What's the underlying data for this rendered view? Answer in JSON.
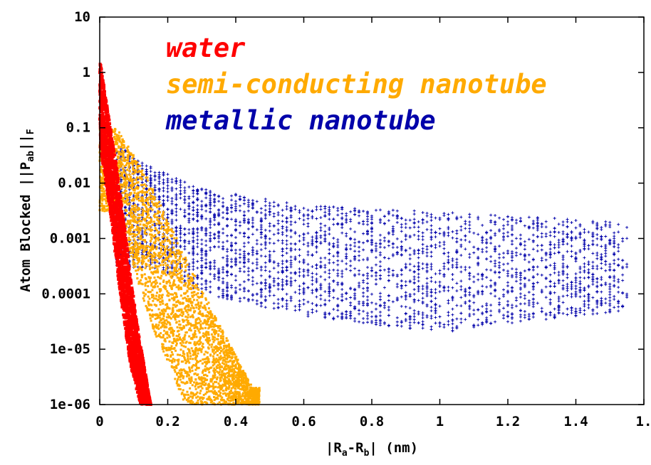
{
  "chart_data": {
    "type": "scatter",
    "title": "",
    "xlabel": "|Ra-Rb| (nm)",
    "ylabel": "Atom Blocked ||Pab||F",
    "xlim": [
      0,
      1.6
    ],
    "ylim": [
      1e-06,
      10
    ],
    "yscale": "log",
    "grid": false,
    "legend_position": "top-left (inside plot)",
    "x_ticks": [
      "0",
      "0.2",
      "0.4",
      "0.6",
      "0.8",
      "1",
      "1.2",
      "1.4",
      "1."
    ],
    "y_ticks": [
      "10",
      "1",
      "0.1",
      "0.01",
      "0.001",
      "0.0001",
      "1e-05",
      "1e-06"
    ],
    "series": [
      {
        "name": "water",
        "color": "#ff0000",
        "marker": "dense squares",
        "x_range": [
          0.0,
          0.15
        ],
        "y_max_trend": [
          [
            0.0,
            2.0
          ],
          [
            0.02,
            0.3
          ],
          [
            0.05,
            0.02
          ],
          [
            0.08,
            0.0008
          ],
          [
            0.11,
            3e-05
          ],
          [
            0.15,
            1e-06
          ]
        ],
        "y_min_trend": [
          [
            0.0,
            0.05
          ],
          [
            0.03,
            0.003
          ],
          [
            0.06,
            0.0001
          ],
          [
            0.09,
            5e-06
          ],
          [
            0.12,
            1e-06
          ]
        ]
      },
      {
        "name": "semi-conducting nanotube",
        "color": "#ffaa00",
        "marker": "dense points",
        "x_range": [
          0.0,
          0.47
        ],
        "y_max_trend": [
          [
            0.05,
            0.1
          ],
          [
            0.15,
            0.01
          ],
          [
            0.25,
            0.0005
          ],
          [
            0.35,
            3e-05
          ],
          [
            0.45,
            2e-06
          ]
        ],
        "y_min_trend": [
          [
            0.05,
            0.003
          ],
          [
            0.15,
            3e-05
          ],
          [
            0.25,
            1e-06
          ]
        ]
      },
      {
        "name": "metallic nanotube",
        "color": "#0000aa",
        "marker": "+",
        "x_range": [
          0.05,
          1.55
        ],
        "y_max_trend": [
          [
            0.05,
            0.05
          ],
          [
            0.15,
            0.02
          ],
          [
            0.3,
            0.008
          ],
          [
            0.6,
            0.004
          ],
          [
            1.0,
            0.003
          ],
          [
            1.55,
            0.002
          ]
        ],
        "y_min_trend": [
          [
            0.15,
            0.0003
          ],
          [
            0.3,
            0.0001
          ],
          [
            0.6,
            4e-05
          ],
          [
            1.0,
            2e-05
          ],
          [
            1.55,
            5e-05
          ]
        ]
      }
    ]
  }
}
